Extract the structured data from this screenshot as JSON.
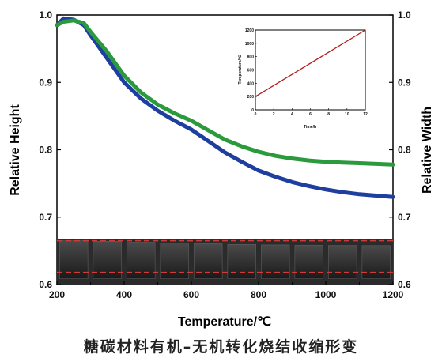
{
  "caption": "糖碳材料有机–无机转化烧结收缩形变",
  "chart_data": {
    "type": "line",
    "xlabel": "Temperature/℃",
    "ylabel_left": "Relative Height",
    "ylabel_right": "Relative Width",
    "xlim": [
      200,
      1200
    ],
    "ylim": [
      0.6,
      1.0
    ],
    "x_ticks": [
      "200",
      "400",
      "600",
      "800",
      "1000",
      "1200"
    ],
    "y_ticks": [
      "0.6",
      "0.7",
      "0.8",
      "0.9",
      "1.0"
    ],
    "series": [
      {
        "color": "#1f3fa0",
        "x": [
          200,
          220,
          250,
          280,
          300,
          350,
          400,
          450,
          500,
          550,
          600,
          650,
          700,
          750,
          800,
          850,
          900,
          950,
          1000,
          1050,
          1100,
          1150,
          1200
        ],
        "y": [
          0.985,
          0.995,
          0.993,
          0.985,
          0.97,
          0.935,
          0.9,
          0.876,
          0.858,
          0.843,
          0.83,
          0.813,
          0.796,
          0.782,
          0.769,
          0.76,
          0.752,
          0.746,
          0.741,
          0.737,
          0.734,
          0.732,
          0.73
        ]
      },
      {
        "color": "#2a9a3c",
        "x": [
          200,
          220,
          250,
          280,
          300,
          350,
          400,
          450,
          500,
          550,
          600,
          650,
          700,
          750,
          800,
          850,
          900,
          950,
          1000,
          1050,
          1100,
          1150,
          1200
        ],
        "y": [
          0.985,
          0.99,
          0.992,
          0.988,
          0.975,
          0.945,
          0.91,
          0.885,
          0.867,
          0.854,
          0.843,
          0.829,
          0.815,
          0.805,
          0.797,
          0.791,
          0.787,
          0.784,
          0.782,
          0.781,
          0.78,
          0.779,
          0.778
        ]
      }
    ],
    "reference_lines_y": [
      0.665,
      0.618
    ],
    "reference_line_color": "#d23a3a",
    "sample_strip": {
      "count": 10,
      "color_dark": "#1a1a1a",
      "color_light": "#4a4a4a",
      "relative_heights": [
        1.0,
        0.985,
        0.96,
        0.94,
        0.92,
        0.905,
        0.89,
        0.88,
        0.875,
        0.87
      ]
    },
    "inset": {
      "type": "line",
      "xlabel": "Time/h",
      "ylabel": "Temperature/℃",
      "xlim": [
        0,
        12
      ],
      "ylim": [
        0,
        1200
      ],
      "x_ticks": [
        "0",
        "2",
        "4",
        "6",
        "8",
        "10",
        "12"
      ],
      "y_ticks": [
        "0",
        "200",
        "400",
        "600",
        "800",
        "1000",
        "1200"
      ],
      "line": {
        "color": "#b21e1e",
        "x": [
          0,
          12
        ],
        "y": [
          200,
          1200
        ]
      }
    }
  }
}
